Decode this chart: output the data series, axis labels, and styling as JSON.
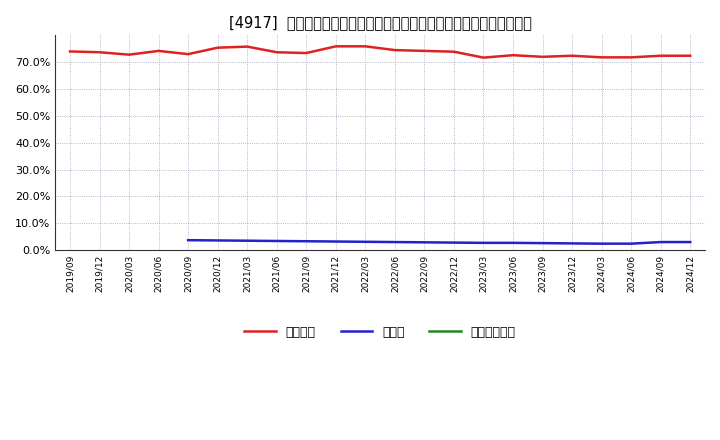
{
  "title": "[4917]  自己資本、のれん、繰延税金資産の総資産に対する比率の推移",
  "x_labels": [
    "2019/09",
    "2019/12",
    "2020/03",
    "2020/06",
    "2020/09",
    "2020/12",
    "2021/03",
    "2021/06",
    "2021/09",
    "2021/12",
    "2022/03",
    "2022/06",
    "2022/09",
    "2022/12",
    "2023/03",
    "2023/06",
    "2023/09",
    "2023/12",
    "2024/03",
    "2024/06",
    "2024/09",
    "2024/12"
  ],
  "jikoshihon": [
    0.74,
    0.737,
    0.728,
    0.742,
    0.73,
    0.754,
    0.758,
    0.737,
    0.734,
    0.759,
    0.759,
    0.745,
    0.742,
    0.739,
    0.717,
    0.726,
    0.72,
    0.724,
    0.718,
    0.718,
    0.724,
    0.724
  ],
  "noren": [
    null,
    null,
    null,
    null,
    0.037,
    0.036,
    0.035,
    0.034,
    0.033,
    0.032,
    0.031,
    0.03,
    0.029,
    0.028,
    0.027,
    0.027,
    0.026,
    0.025,
    0.024,
    0.024,
    0.03,
    0.03
  ],
  "kurinobe": [
    null,
    null,
    null,
    null,
    null,
    null,
    null,
    null,
    null,
    null,
    null,
    null,
    null,
    null,
    null,
    null,
    null,
    null,
    null,
    null,
    null,
    null
  ],
  "jikoshihon_color": "#dd2222",
  "noren_color": "#2222cc",
  "kurinobe_color": "#228822",
  "bg_color": "#ffffff",
  "plot_bg_color": "#ffffff",
  "grid_color": "#8888aa",
  "legend_labels": [
    "自己資本",
    "のれん",
    "繰延税金資産"
  ],
  "ylim": [
    0.0,
    0.8
  ],
  "yticks": [
    0.0,
    0.1,
    0.2,
    0.3,
    0.4,
    0.5,
    0.6,
    0.7
  ],
  "linewidth": 1.8,
  "title_fontsize": 10.5
}
